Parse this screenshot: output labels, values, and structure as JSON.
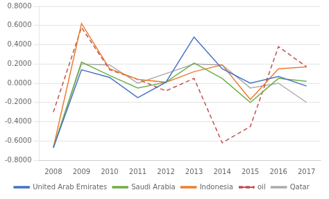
{
  "chart_data": {
    "type": "line",
    "x": [
      2008,
      2009,
      2010,
      2011,
      2012,
      2013,
      2014,
      2015,
      2016,
      2017
    ],
    "xlim": [
      2007.5,
      2017.5
    ],
    "xticks": [
      2008,
      2009,
      2010,
      2011,
      2012,
      2013,
      2014,
      2015,
      2016,
      2017
    ],
    "ylim": [
      -0.8,
      0.8
    ],
    "yticks": [
      {
        "value": -0.8,
        "label": "-0.8000"
      },
      {
        "value": -0.6,
        "label": "-0.6000"
      },
      {
        "value": -0.4,
        "label": "-0.4000"
      },
      {
        "value": -0.2,
        "label": "-0.2000"
      },
      {
        "value": 0.0,
        "label": "0.0000"
      },
      {
        "value": 0.2,
        "label": "0.2000"
      },
      {
        "value": 0.4,
        "label": "0.4000"
      },
      {
        "value": 0.6,
        "label": "0.6000"
      },
      {
        "value": 0.8,
        "label": "0.8000"
      }
    ],
    "grid": "y",
    "legend": "bottom",
    "series": [
      {
        "name": "United Arab Emirates",
        "color": "#4472C4",
        "line_style": "solid",
        "values": [
          -0.67,
          0.14,
          0.06,
          -0.15,
          0.01,
          0.48,
          0.15,
          0.0,
          0.07,
          -0.03
        ]
      },
      {
        "name": "Saudi Arabia",
        "color": "#70AD47",
        "line_style": "solid",
        "values": [
          -0.67,
          0.22,
          0.08,
          -0.05,
          0.01,
          0.21,
          0.05,
          -0.2,
          0.05,
          0.02
        ]
      },
      {
        "name": "Indonesia",
        "color": "#ED7D31",
        "line_style": "solid",
        "values": [
          -0.67,
          0.62,
          0.15,
          0.04,
          0.01,
          0.12,
          0.19,
          -0.17,
          0.15,
          0.17
        ]
      },
      {
        "name": "oil",
        "color": "#C0504D",
        "line_style": "dashed",
        "values": [
          -0.3,
          0.58,
          0.14,
          0.04,
          -0.08,
          0.05,
          -0.62,
          -0.45,
          0.38,
          0.17
        ]
      },
      {
        "name": "Qatar",
        "color": "#AAAAAA",
        "line_style": "solid",
        "values": [
          -0.67,
          0.2,
          0.19,
          0.0,
          0.1,
          0.2,
          0.19,
          -0.05,
          0.0,
          -0.2
        ]
      }
    ]
  }
}
